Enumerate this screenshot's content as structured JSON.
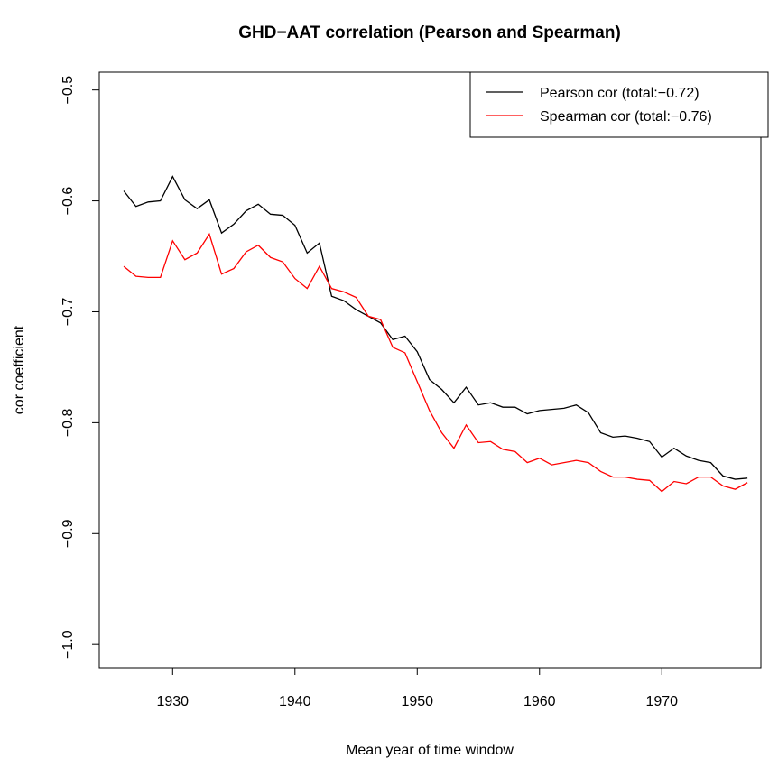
{
  "chart_data": {
    "type": "line",
    "title": "GHD−AAT correlation (Pearson and Spearman)",
    "x_label": "Mean year of time window",
    "y_label": "cor coefficient",
    "x": [
      1926,
      1927,
      1928,
      1929,
      1930,
      1931,
      1932,
      1933,
      1934,
      1935,
      1936,
      1937,
      1938,
      1939,
      1940,
      1941,
      1942,
      1943,
      1944,
      1945,
      1946,
      1947,
      1948,
      1949,
      1950,
      1951,
      1952,
      1953,
      1954,
      1955,
      1956,
      1957,
      1958,
      1959,
      1960,
      1961,
      1962,
      1963,
      1964,
      1965,
      1966,
      1967,
      1968,
      1969,
      1970,
      1971,
      1972,
      1973,
      1974,
      1975,
      1976,
      1977
    ],
    "series": [
      {
        "name": "Pearson cor (total:−0.72)",
        "color": "#000000",
        "values": [
          -0.591,
          -0.605,
          -0.601,
          -0.6,
          -0.578,
          -0.599,
          -0.607,
          -0.599,
          -0.629,
          -0.621,
          -0.609,
          -0.603,
          -0.612,
          -0.613,
          -0.622,
          -0.647,
          -0.638,
          -0.686,
          -0.69,
          -0.698,
          -0.704,
          -0.71,
          -0.725,
          -0.722,
          -0.736,
          -0.761,
          -0.77,
          -0.782,
          -0.768,
          -0.784,
          -0.782,
          -0.786,
          -0.786,
          -0.792,
          -0.789,
          -0.788,
          -0.787,
          -0.784,
          -0.791,
          -0.809,
          -0.813,
          -0.812,
          -0.814,
          -0.817,
          -0.831,
          -0.823,
          -0.83,
          -0.834,
          -0.836,
          -0.848,
          -0.851,
          -0.85
        ]
      },
      {
        "name": "Spearman cor (total:−0.76)",
        "color": "#ff0000",
        "values": [
          -0.659,
          -0.668,
          -0.669,
          -0.669,
          -0.636,
          -0.653,
          -0.647,
          -0.63,
          -0.666,
          -0.661,
          -0.646,
          -0.64,
          -0.651,
          -0.655,
          -0.67,
          -0.679,
          -0.659,
          -0.679,
          -0.682,
          -0.687,
          -0.704,
          -0.707,
          -0.732,
          -0.737,
          -0.763,
          -0.789,
          -0.809,
          -0.823,
          -0.802,
          -0.818,
          -0.817,
          -0.824,
          -0.826,
          -0.836,
          -0.832,
          -0.838,
          -0.836,
          -0.834,
          -0.836,
          -0.844,
          -0.849,
          -0.849,
          -0.851,
          -0.852,
          -0.862,
          -0.853,
          -0.855,
          -0.849,
          -0.849,
          -0.857,
          -0.86,
          -0.854
        ]
      }
    ],
    "xlim": [
      1924,
      1978.1
    ],
    "ylim": [
      -1.021,
      -0.484
    ],
    "xticks": [
      1930,
      1940,
      1950,
      1960,
      1970
    ],
    "yticks": [
      {
        "value": -1.0,
        "label": "−1.0"
      },
      {
        "value": -0.9,
        "label": "−0.9"
      },
      {
        "value": -0.8,
        "label": "−0.8"
      },
      {
        "value": -0.7,
        "label": "−0.7"
      },
      {
        "value": -0.6,
        "label": "−0.6"
      },
      {
        "value": -0.5,
        "label": "−0.5"
      }
    ],
    "legend": "top-right"
  }
}
